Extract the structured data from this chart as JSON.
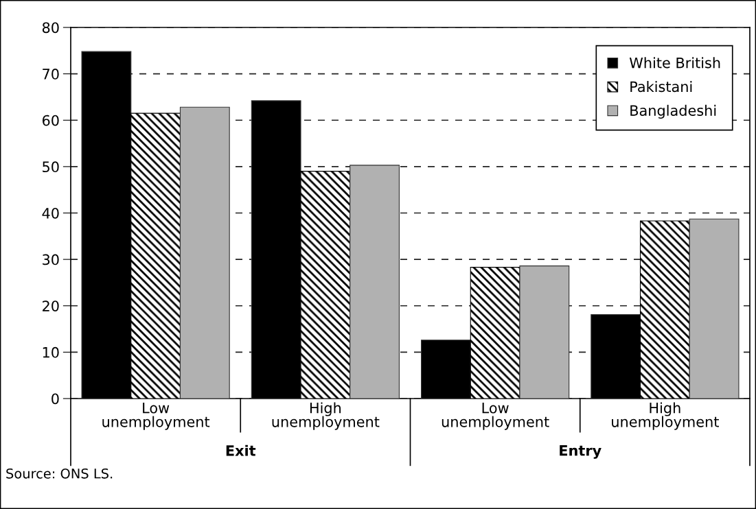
{
  "chart_data": {
    "type": "bar",
    "categories": [
      "Low\nunemployment",
      "High\nunemployment",
      "Low\nunemployment",
      "High\nunemployment"
    ],
    "series": [
      {
        "name": "White British",
        "color": "#000000",
        "values": [
          74.8,
          64.2,
          12.6,
          18.1
        ]
      },
      {
        "name": "Pakistani",
        "color": "#000000",
        "values": [
          61.5,
          49.0,
          28.3,
          38.3
        ]
      },
      {
        "name": "Bangladeshi",
        "color": "#b1b1b1",
        "values": [
          62.8,
          50.3,
          28.6,
          38.7
        ]
      }
    ],
    "ylim": [
      0,
      80
    ],
    "yticks": [
      0,
      10,
      20,
      30,
      40,
      50,
      60,
      70,
      80
    ],
    "grid": "y",
    "legend": "top right",
    "annotations": [
      "Exit",
      "Entry",
      "Source: ONS LS."
    ]
  }
}
